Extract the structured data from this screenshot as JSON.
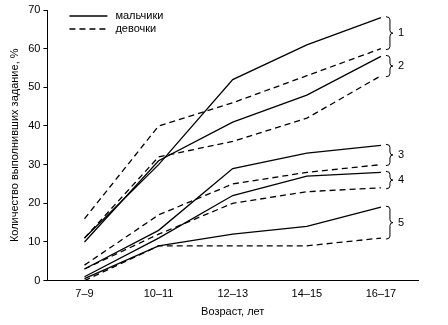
{
  "chart_data": {
    "type": "line",
    "x_label": "Возраст, лет",
    "y_label": "Количество выполнивших задание, %",
    "categories": [
      "7–9",
      "10–11",
      "12–13",
      "14–15",
      "16–17"
    ],
    "ylim": [
      0,
      70
    ],
    "yticks": [
      0,
      10,
      20,
      30,
      40,
      50,
      60,
      70
    ],
    "grid": false,
    "legend": "upper left",
    "series": [
      {
        "name": "мальчики",
        "group": "1",
        "color": "#000000",
        "line_style": "solid",
        "values": [
          11,
          30,
          52,
          61,
          68
        ]
      },
      {
        "name": "девочки",
        "group": "1",
        "color": "#000000",
        "line_style": "dashed",
        "values": [
          16,
          40,
          46,
          53,
          60
        ]
      },
      {
        "name": "мальчики",
        "group": "2",
        "color": "#000000",
        "line_style": "solid",
        "values": [
          10,
          31,
          41,
          48,
          58
        ]
      },
      {
        "name": "девочки",
        "group": "2",
        "color": "#000000",
        "line_style": "dashed",
        "values": [
          11,
          32,
          36,
          42,
          53
        ]
      },
      {
        "name": "мальчики",
        "group": "3",
        "color": "#000000",
        "line_style": "solid",
        "values": [
          3,
          13,
          29,
          33,
          35
        ]
      },
      {
        "name": "девочки",
        "group": "3",
        "color": "#000000",
        "line_style": "dashed",
        "values": [
          4,
          17,
          25,
          28,
          30
        ]
      },
      {
        "name": "мальчики",
        "group": "4",
        "color": "#000000",
        "line_style": "solid",
        "values": [
          1,
          11,
          22,
          27,
          28
        ]
      },
      {
        "name": "девочки",
        "group": "4",
        "color": "#000000",
        "line_style": "dashed",
        "values": [
          3,
          12,
          20,
          23,
          24
        ]
      },
      {
        "name": "мальчики",
        "group": "5",
        "color": "#000000",
        "line_style": "solid",
        "values": [
          0.5,
          9,
          12,
          14,
          19
        ]
      },
      {
        "name": "девочки",
        "group": "5",
        "color": "#000000",
        "line_style": "dashed",
        "values": [
          0,
          9,
          9,
          9,
          11
        ]
      }
    ]
  }
}
